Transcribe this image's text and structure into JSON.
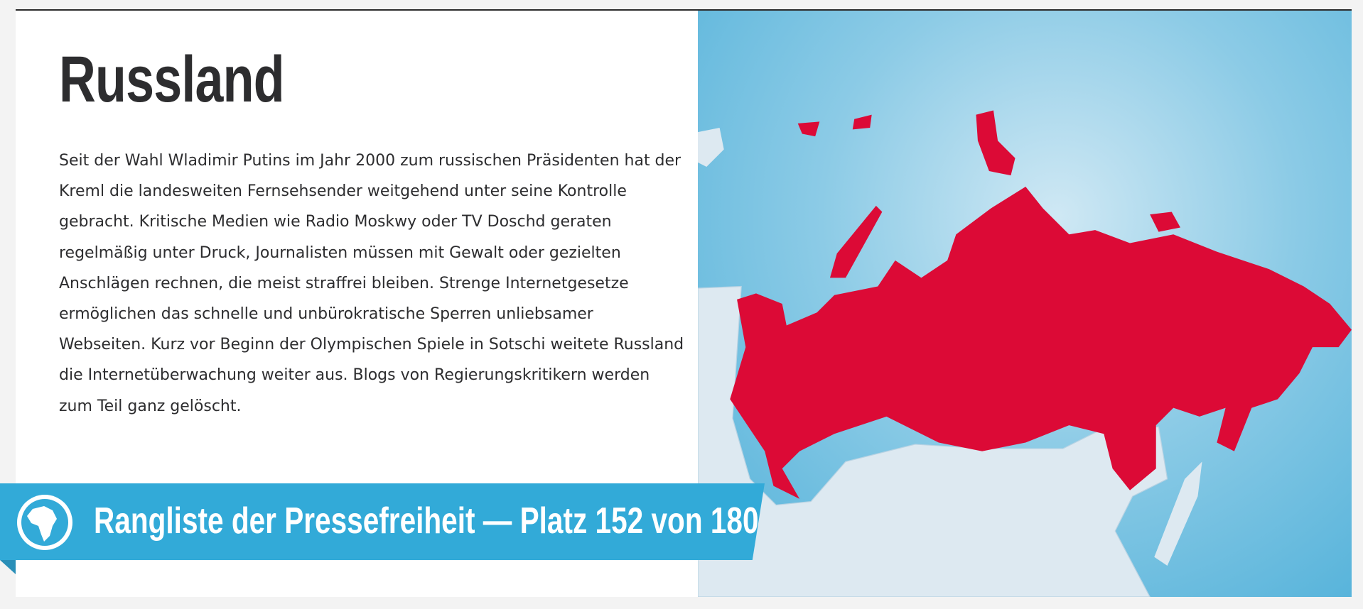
{
  "article": {
    "title": "Russland",
    "body": "Seit der Wahl Wladimir Putins im Jahr 2000 zum russischen Präsidenten hat der Kreml die landesweiten Fernsehsender weitgehend unter seine Kontrolle gebracht. Kritische Medien wie Radio Moskwy oder TV Doschd geraten regelmäßig unter Druck, Journalisten müssen mit Gewalt oder gezielten Anschlägen rechnen, die meist straffrei bleiben. Strenge Internetgesetze ermöglichen das schnelle und unbürokratische Sperren unliebsamer Webseiten. Kurz vor Beginn der Olympischen Spiele in Sotschi weitete Russland die Internetüberwachung weiter aus. Blogs von Regierungskritikern werden zum Teil ganz gelöscht."
  },
  "banner": {
    "icon": "globe-icon",
    "text": "Rangliste der Pressefreiheit — Platz 152 von 180"
  },
  "map": {
    "highlighted_country_color": "#dc0a36",
    "sea_color": "#4fb0d9",
    "land_color": "#dde9f1"
  }
}
